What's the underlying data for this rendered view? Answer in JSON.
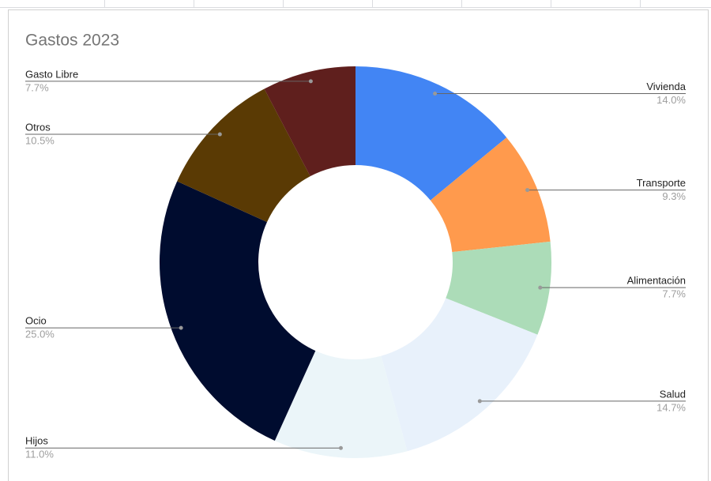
{
  "chart_data": {
    "type": "donut",
    "title": "Gastos 2023",
    "categories": [
      "Vivienda",
      "Transporte",
      "Alimentación",
      "Salud",
      "Hijos",
      "Ocio",
      "Otros",
      "Gasto Libre"
    ],
    "values": [
      14.0,
      9.3,
      7.7,
      14.7,
      11.0,
      25.0,
      10.5,
      7.7
    ],
    "value_labels": [
      "14.0%",
      "9.3%",
      "7.7%",
      "14.7%",
      "11.0%",
      "25.0%",
      "10.5%",
      "7.7%"
    ],
    "colors": [
      "#4285f4",
      "#ff9a4d",
      "#acdcb8",
      "#e8f1fb",
      "#ebf5f9",
      "#000c2f",
      "#5a3a04",
      "#5f1f1d"
    ]
  }
}
